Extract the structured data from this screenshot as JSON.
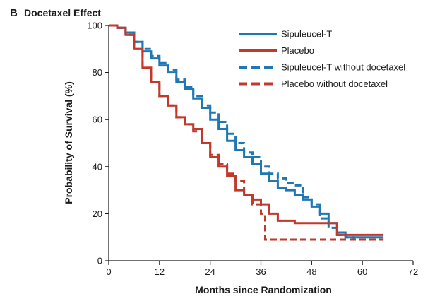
{
  "panel": {
    "letter": "B",
    "title": "Docetaxel Effect"
  },
  "chart_data": {
    "type": "line",
    "title": "Docetaxel Effect",
    "xlabel": "Months since Randomization",
    "ylabel": "Probability of Survival (%)",
    "xlim": [
      0,
      72
    ],
    "ylim": [
      0,
      100
    ],
    "xticks": [
      "0",
      "12",
      "24",
      "36",
      "48",
      "60",
      "72"
    ],
    "yticks": [
      "0",
      "20",
      "40",
      "60",
      "80",
      "100"
    ],
    "grid": false,
    "legend_position": "top-right",
    "series": [
      {
        "name": "Sipuleucel-T",
        "color": "#1f78b4",
        "style": "solid",
        "x": [
          0,
          2,
          4,
          6,
          8,
          10,
          12,
          14,
          16,
          18,
          20,
          22,
          24,
          26,
          28,
          30,
          32,
          34,
          36,
          38,
          40,
          42,
          44,
          46,
          48,
          50,
          52,
          54,
          56,
          58,
          60,
          62,
          65
        ],
        "y": [
          100,
          99,
          97,
          93,
          89,
          86,
          83,
          80,
          76,
          73,
          69,
          65,
          60,
          56,
          51,
          47,
          44,
          41,
          37,
          34,
          31,
          30,
          28,
          26,
          23,
          20,
          16,
          12,
          10,
          10,
          10,
          10,
          10
        ]
      },
      {
        "name": "Placebo",
        "color": "#c0392b",
        "style": "solid",
        "x": [
          0,
          2,
          4,
          6,
          8,
          10,
          12,
          14,
          16,
          18,
          20,
          22,
          24,
          26,
          28,
          30,
          32,
          34,
          36,
          38,
          40,
          42,
          44,
          46,
          48,
          50,
          52,
          54,
          56,
          58,
          60,
          62,
          65
        ],
        "y": [
          100,
          99,
          96,
          90,
          82,
          76,
          70,
          66,
          61,
          58,
          56,
          50,
          44,
          40,
          36,
          30,
          28,
          26,
          24,
          20,
          17,
          17,
          16,
          16,
          16,
          16,
          16,
          11,
          11,
          11,
          11,
          11,
          11
        ]
      },
      {
        "name": "Sipuleucel-T without docetaxel",
        "color": "#1f78b4",
        "style": "dashed",
        "x": [
          0,
          2,
          4,
          6,
          8,
          10,
          12,
          14,
          16,
          18,
          20,
          22,
          24,
          26,
          28,
          30,
          32,
          34,
          36,
          38,
          40,
          42,
          44,
          46,
          48,
          50,
          52,
          54,
          56,
          58,
          60,
          62,
          65
        ],
        "y": [
          100,
          99,
          97,
          93,
          90,
          87,
          84,
          81,
          77,
          74,
          70,
          66,
          63,
          59,
          54,
          50,
          46,
          44,
          40,
          37,
          35,
          33,
          32,
          27,
          24,
          18,
          14,
          11,
          10,
          9,
          9,
          9,
          9
        ]
      },
      {
        "name": "Placebo without docetaxel",
        "color": "#c0392b",
        "style": "dashed",
        "x": [
          0,
          2,
          4,
          6,
          8,
          10,
          12,
          14,
          16,
          18,
          20,
          22,
          24,
          26,
          28,
          30,
          32,
          34,
          36,
          37,
          40,
          44,
          48,
          52,
          56,
          60,
          65
        ],
        "y": [
          100,
          99,
          96,
          90,
          82,
          76,
          70,
          66,
          61,
          58,
          55,
          50,
          45,
          41,
          37,
          34,
          28,
          24,
          20,
          9,
          9,
          9,
          9,
          9,
          9,
          9,
          9
        ]
      }
    ]
  }
}
